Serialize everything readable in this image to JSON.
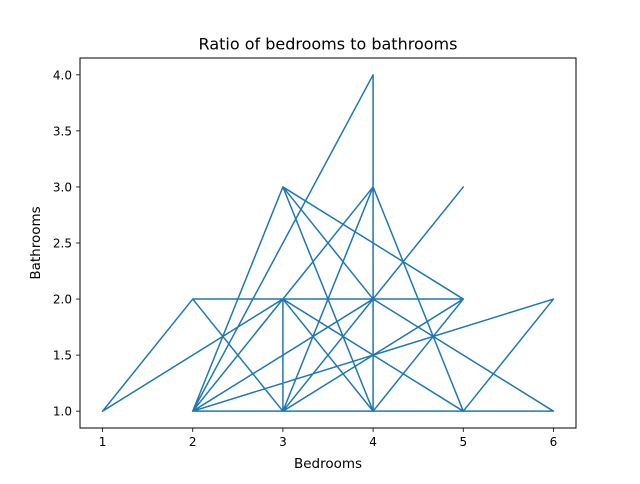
{
  "chart_data": {
    "type": "line",
    "title": "Ratio of bedrooms to bathrooms",
    "xlabel": "Bedrooms",
    "ylabel": "Bathrooms",
    "xlim": [
      0.75,
      6.25
    ],
    "ylim": [
      0.85,
      4.15
    ],
    "xticks": [
      1,
      2,
      3,
      4,
      5,
      6
    ],
    "xtick_labels": [
      "1",
      "2",
      "3",
      "4",
      "5",
      "6"
    ],
    "yticks": [
      1.0,
      1.5,
      2.0,
      2.5,
      3.0,
      3.5,
      4.0
    ],
    "ytick_labels": [
      "1.0",
      "1.5",
      "2.0",
      "2.5",
      "3.0",
      "3.5",
      "4.0"
    ],
    "grid": false,
    "color": "#1f77b4",
    "series": [
      {
        "x": [
          1,
          2,
          3,
          2,
          4,
          3,
          5,
          3,
          2,
          4,
          3,
          1,
          2,
          3,
          5,
          4,
          3,
          2,
          3,
          4,
          2,
          4,
          3,
          5,
          4,
          2,
          3,
          4,
          3,
          4,
          2,
          3,
          3,
          5,
          4,
          3,
          4,
          6,
          3,
          2,
          4,
          3,
          2,
          4,
          3,
          5,
          6,
          2,
          4,
          4,
          4,
          3
        ],
        "y": [
          1,
          2,
          1,
          1,
          2,
          3,
          2,
          2,
          1,
          1,
          2,
          1,
          2,
          2,
          1,
          3,
          1,
          2,
          2,
          1,
          1,
          3,
          1,
          3,
          2,
          2,
          1,
          1,
          3,
          2,
          1,
          2,
          1,
          2,
          1,
          2,
          2,
          1,
          1,
          2,
          2,
          3,
          1,
          2,
          1,
          1,
          2,
          1,
          4,
          1,
          2,
          2
        ]
      }
    ]
  }
}
